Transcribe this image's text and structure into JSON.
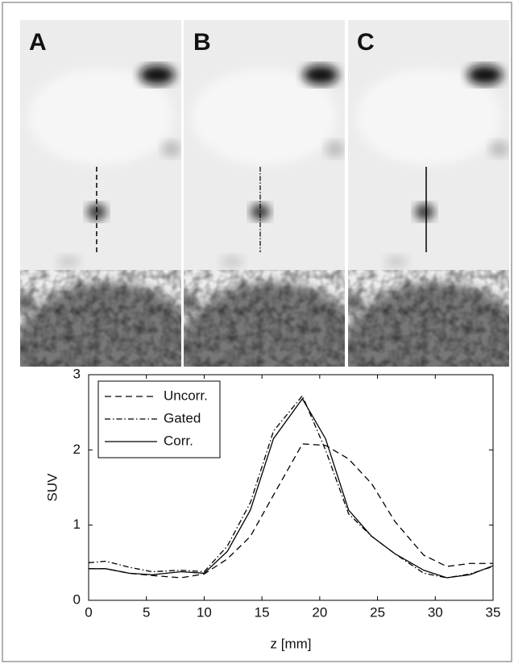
{
  "panels": [
    "A",
    "B",
    "C"
  ],
  "chart_data": {
    "type": "line",
    "x": [
      0,
      1.5,
      3.5,
      5.5,
      8,
      10,
      12,
      14,
      16,
      18.5,
      20.5,
      22.5,
      24.5,
      26.5,
      29,
      31,
      33,
      35
    ],
    "series": [
      {
        "name": "Uncorr.",
        "color": "#000000",
        "dash": "8,5",
        "values": [
          0.42,
          0.42,
          0.36,
          0.33,
          0.3,
          0.35,
          0.55,
          0.85,
          1.4,
          2.08,
          2.06,
          1.88,
          1.55,
          1.05,
          0.6,
          0.45,
          0.49,
          0.49
        ]
      },
      {
        "name": "Gated",
        "color": "#000000",
        "dash": "7,3,1.5,3",
        "values": [
          0.5,
          0.52,
          0.44,
          0.38,
          0.4,
          0.38,
          0.72,
          1.3,
          2.25,
          2.72,
          2.0,
          1.15,
          0.85,
          0.62,
          0.36,
          0.3,
          0.35,
          0.45
        ]
      },
      {
        "name": "Corr.",
        "color": "#000000",
        "dash": "none",
        "values": [
          0.42,
          0.42,
          0.36,
          0.34,
          0.38,
          0.36,
          0.65,
          1.2,
          2.15,
          2.68,
          2.15,
          1.2,
          0.85,
          0.62,
          0.4,
          0.3,
          0.34,
          0.46
        ]
      }
    ],
    "xlabel": "z [mm]",
    "ylabel": "SUV",
    "xlim": [
      0,
      35
    ],
    "ylim": [
      0,
      3
    ],
    "xticks": [
      0,
      5,
      10,
      15,
      20,
      25,
      30,
      35
    ],
    "yticks": [
      0,
      1,
      2,
      3
    ],
    "legend": "upper left"
  }
}
